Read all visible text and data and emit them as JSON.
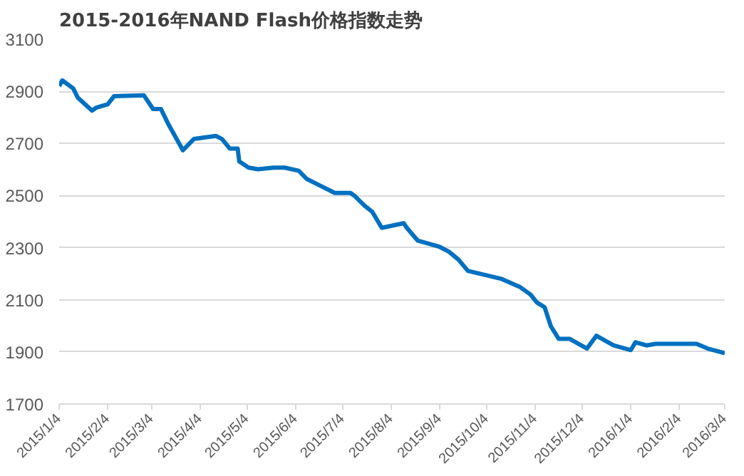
{
  "chart_data": {
    "type": "line",
    "title": "2015-2016年NAND Flash价格指数走势",
    "x": [
      "2015-01-04",
      "2015-01-06",
      "2015-01-13",
      "2015-01-16",
      "2015-01-25",
      "2015-01-28",
      "2015-02-04",
      "2015-02-08",
      "2015-02-27",
      "2015-03-05",
      "2015-03-10",
      "2015-03-15",
      "2015-03-24",
      "2015-03-31",
      "2015-04-14",
      "2015-04-18",
      "2015-04-23",
      "2015-04-28",
      "2015-04-29",
      "2015-05-05",
      "2015-05-11",
      "2015-05-21",
      "2015-05-28",
      "2015-06-06",
      "2015-06-11",
      "2015-06-17",
      "2015-06-29",
      "2015-07-09",
      "2015-07-12",
      "2015-07-18",
      "2015-07-23",
      "2015-07-29",
      "2015-08-12",
      "2015-08-14",
      "2015-08-21",
      "2015-09-04",
      "2015-09-10",
      "2015-09-16",
      "2015-09-22",
      "2015-10-13",
      "2015-10-25",
      "2015-11-01",
      "2015-11-05",
      "2015-11-10",
      "2015-11-14",
      "2015-11-19",
      "2015-11-26",
      "2015-12-07",
      "2015-12-13",
      "2015-12-24",
      "2016-01-04",
      "2016-01-07",
      "2016-01-14",
      "2016-01-20",
      "2016-02-15",
      "2016-02-22",
      "2016-03-04"
    ],
    "series": [
      {
        "color": "#0070c0",
        "values": [
          2920,
          2942,
          2911,
          2875,
          2826,
          2838,
          2850,
          2881,
          2885,
          2832,
          2832,
          2771,
          2674,
          2717,
          2729,
          2717,
          2680,
          2680,
          2631,
          2607,
          2601,
          2607,
          2607,
          2595,
          2564,
          2546,
          2510,
          2510,
          2497,
          2461,
          2437,
          2376,
          2394,
          2376,
          2327,
          2303,
          2284,
          2254,
          2211,
          2181,
          2150,
          2120,
          2090,
          2071,
          1998,
          1950,
          1950,
          1913,
          1962,
          1925,
          1907,
          1937,
          1925,
          1931,
          1931,
          1913,
          1895
        ]
      }
    ],
    "xlim": [
      "2015-01-04",
      "2016-03-04"
    ],
    "xticks": [
      {
        "value": "2015-01-04",
        "label": "2015/1/4"
      },
      {
        "value": "2015-02-04",
        "label": "2015/2/4"
      },
      {
        "value": "2015-03-04",
        "label": "2015/3/4"
      },
      {
        "value": "2015-04-04",
        "label": "2015/4/4"
      },
      {
        "value": "2015-05-04",
        "label": "2015/5/4"
      },
      {
        "value": "2015-06-04",
        "label": "2015/6/4"
      },
      {
        "value": "2015-07-04",
        "label": "2015/7/4"
      },
      {
        "value": "2015-08-04",
        "label": "2015/8/4"
      },
      {
        "value": "2015-09-04",
        "label": "2015/9/4"
      },
      {
        "value": "2015-10-04",
        "label": "2015/10/4"
      },
      {
        "value": "2015-11-04",
        "label": "2015/11/4"
      },
      {
        "value": "2015-12-04",
        "label": "2015/12/4"
      },
      {
        "value": "2016-01-04",
        "label": "2016/1/4"
      },
      {
        "value": "2016-02-04",
        "label": "2016/2/4"
      },
      {
        "value": "2016-03-04",
        "label": "2016/3/4"
      }
    ],
    "ylim": [
      1700,
      3100
    ],
    "yticks": [
      1700,
      1900,
      2100,
      2300,
      2500,
      2700,
      2900,
      3100
    ],
    "grid": "y"
  }
}
